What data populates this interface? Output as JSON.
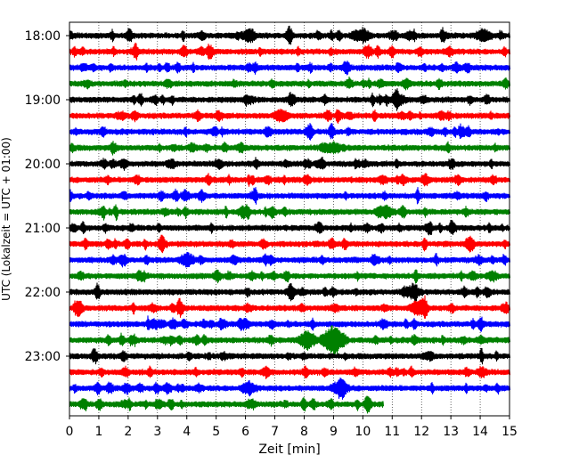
{
  "chart_data": {
    "type": "line",
    "title": "",
    "xlabel": "Zeit  [min]",
    "ylabel": "UTC (Lokalzeit = UTC + 01:00)",
    "xlim": [
      0,
      15
    ],
    "x_ticks": [
      "0",
      "1",
      "2",
      "3",
      "4",
      "5",
      "6",
      "7",
      "8",
      "9",
      "10",
      "11",
      "12",
      "13",
      "14",
      "15"
    ],
    "y_tick_labels": [
      "18:00",
      "19:00",
      "20:00",
      "21:00",
      "22:00",
      "23:00"
    ],
    "y_tick_rows": [
      0,
      4,
      8,
      12,
      16,
      20
    ],
    "grid": "vertical dotted",
    "colors_cycle": [
      "#000000",
      "#ff0000",
      "#0000ff",
      "#008000"
    ],
    "rows": [
      {
        "start": "18:00",
        "color": "#000000",
        "x_end": 15
      },
      {
        "start": "18:15",
        "color": "#ff0000",
        "x_end": 15
      },
      {
        "start": "18:30",
        "color": "#0000ff",
        "x_end": 15
      },
      {
        "start": "18:45",
        "color": "#008000",
        "x_end": 15
      },
      {
        "start": "19:00",
        "color": "#000000",
        "x_end": 15
      },
      {
        "start": "19:15",
        "color": "#ff0000",
        "x_end": 15
      },
      {
        "start": "19:30",
        "color": "#0000ff",
        "x_end": 15
      },
      {
        "start": "19:45",
        "color": "#008000",
        "x_end": 15
      },
      {
        "start": "20:00",
        "color": "#000000",
        "x_end": 15
      },
      {
        "start": "20:15",
        "color": "#ff0000",
        "x_end": 15
      },
      {
        "start": "20:30",
        "color": "#0000ff",
        "x_end": 15
      },
      {
        "start": "20:45",
        "color": "#008000",
        "x_end": 15
      },
      {
        "start": "21:00",
        "color": "#000000",
        "x_end": 15
      },
      {
        "start": "21:15",
        "color": "#ff0000",
        "x_end": 15
      },
      {
        "start": "21:30",
        "color": "#0000ff",
        "x_end": 15
      },
      {
        "start": "21:45",
        "color": "#008000",
        "x_end": 15
      },
      {
        "start": "22:00",
        "color": "#000000",
        "x_end": 15
      },
      {
        "start": "22:15",
        "color": "#ff0000",
        "x_end": 15
      },
      {
        "start": "22:30",
        "color": "#0000ff",
        "x_end": 15
      },
      {
        "start": "22:45",
        "color": "#008000",
        "x_end": 15
      },
      {
        "start": "23:00",
        "color": "#000000",
        "x_end": 15
      },
      {
        "start": "23:15",
        "color": "#ff0000",
        "x_end": 15
      },
      {
        "start": "23:30",
        "color": "#0000ff",
        "x_end": 15
      },
      {
        "start": "23:45",
        "color": "#008000",
        "x_end": 10.7
      }
    ],
    "events": [
      {
        "row": 19,
        "x": 9.0,
        "amplitude": 2.6
      },
      {
        "row": 19,
        "x": 8.1,
        "amplitude": 1.6
      },
      {
        "row": 17,
        "x": 11.9,
        "amplitude": 1.4
      },
      {
        "row": 16,
        "x": 11.7,
        "amplitude": 1.2
      },
      {
        "row": 22,
        "x": 9.2,
        "amplitude": 1.3
      },
      {
        "row": 22,
        "x": 6.1,
        "amplitude": 1.1
      },
      {
        "row": 0,
        "x": 10.0,
        "amplitude": 1.1
      },
      {
        "row": 0,
        "x": 14.1,
        "amplitude": 1.1
      },
      {
        "row": 0,
        "x": 6.1,
        "amplitude": 1.0
      },
      {
        "row": 4,
        "x": 11.2,
        "amplitude": 1.0
      },
      {
        "row": 5,
        "x": 7.2,
        "amplitude": 1.0
      },
      {
        "row": 14,
        "x": 4.0,
        "amplitude": 1.1
      },
      {
        "row": 11,
        "x": 10.8,
        "amplitude": 1.0
      },
      {
        "row": 7,
        "x": 9.0,
        "amplitude": 0.9
      }
    ]
  }
}
